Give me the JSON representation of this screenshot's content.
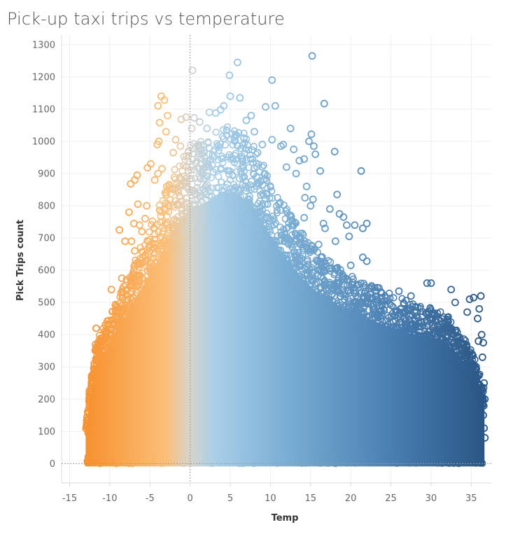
{
  "chart_data": {
    "type": "scatter",
    "title": "Pick-up taxi trips vs temperature",
    "xlabel": "Temp",
    "ylabel": "Pick Trips count",
    "xlim": [
      -16,
      37.5
    ],
    "ylim": [
      -60,
      1330
    ],
    "x_ticks": [
      -15,
      -10,
      -5,
      0,
      5,
      10,
      15,
      20,
      25,
      30,
      35
    ],
    "y_ticks": [
      0,
      100,
      200,
      300,
      400,
      500,
      600,
      700,
      800,
      900,
      1000,
      1100,
      1200,
      1300
    ],
    "grid": true,
    "marker": "hollow-circle",
    "color_scale": {
      "field": "Temp",
      "stops": [
        {
          "value": -13,
          "color": "#f7912f"
        },
        {
          "value": -3,
          "color": "#fbbf79"
        },
        {
          "value": 0,
          "color": "#d6d4cc"
        },
        {
          "value": 3,
          "color": "#a9cfe8"
        },
        {
          "value": 12,
          "color": "#7aaed4"
        },
        {
          "value": 25,
          "color": "#4a7fb2"
        },
        {
          "value": 36.5,
          "color": "#2a5786"
        }
      ]
    },
    "envelope": [
      [
        -13,
        120
      ],
      [
        -12,
        330
      ],
      [
        -10,
        420
      ],
      [
        -8,
        520
      ],
      [
        -6,
        620
      ],
      [
        -4,
        720
      ],
      [
        -2,
        830
      ],
      [
        0,
        900
      ],
      [
        2,
        920
      ],
      [
        4,
        960
      ],
      [
        6,
        950
      ],
      [
        8,
        900
      ],
      [
        10,
        800
      ],
      [
        12,
        720
      ],
      [
        14,
        650
      ],
      [
        16,
        600
      ],
      [
        18,
        560
      ],
      [
        20,
        530
      ],
      [
        22,
        510
      ],
      [
        24,
        490
      ],
      [
        26,
        470
      ],
      [
        28,
        450
      ],
      [
        30,
        440
      ],
      [
        32,
        420
      ],
      [
        34,
        360
      ],
      [
        35.5,
        300
      ],
      [
        36.5,
        220
      ]
    ],
    "outliers": [
      {
        "x": 0.3,
        "y": 1220
      },
      {
        "x": 4.9,
        "y": 1205
      },
      {
        "x": 5.9,
        "y": 1245
      },
      {
        "x": 15.2,
        "y": 1265
      },
      {
        "x": 10.2,
        "y": 1190
      },
      {
        "x": 16.7,
        "y": 1117
      },
      {
        "x": 10.6,
        "y": 1110
      },
      {
        "x": 9.4,
        "y": 1107
      },
      {
        "x": 5.0,
        "y": 1140
      },
      {
        "x": 6.2,
        "y": 1135
      },
      {
        "x": 4.2,
        "y": 1110
      },
      {
        "x": 7.6,
        "y": 1080
      },
      {
        "x": -3.6,
        "y": 1140
      },
      {
        "x": -3.2,
        "y": 1128
      },
      {
        "x": -4.0,
        "y": 1110
      },
      {
        "x": -2.8,
        "y": 1080
      },
      {
        "x": -3.8,
        "y": 1058
      },
      {
        "x": -3.0,
        "y": 1030
      },
      {
        "x": -3.9,
        "y": 1000
      },
      {
        "x": -4.1,
        "y": 990
      },
      {
        "x": 12.5,
        "y": 1040
      },
      {
        "x": 15.1,
        "y": 1022
      },
      {
        "x": 14.8,
        "y": 1000
      },
      {
        "x": 15.4,
        "y": 985
      },
      {
        "x": 16.2,
        "y": 908
      },
      {
        "x": 18.0,
        "y": 968
      },
      {
        "x": 21.3,
        "y": 908
      },
      {
        "x": 15.6,
        "y": 960
      },
      {
        "x": 14.2,
        "y": 945
      },
      {
        "x": 18.3,
        "y": 835
      },
      {
        "x": 17.4,
        "y": 790
      },
      {
        "x": 18.6,
        "y": 775
      },
      {
        "x": 19.1,
        "y": 765
      },
      {
        "x": 19.5,
        "y": 740
      },
      {
        "x": 20.5,
        "y": 740
      },
      {
        "x": 22.0,
        "y": 745
      },
      {
        "x": 21.5,
        "y": 730
      },
      {
        "x": 16.8,
        "y": 730
      },
      {
        "x": 18.1,
        "y": 690
      },
      {
        "x": 19.8,
        "y": 705
      },
      {
        "x": 21.5,
        "y": 640
      },
      {
        "x": 22.0,
        "y": 628
      },
      {
        "x": 15.0,
        "y": 665
      },
      {
        "x": 13.6,
        "y": 705
      },
      {
        "x": 16.0,
        "y": 680
      },
      {
        "x": 20.0,
        "y": 615
      },
      {
        "x": 23.5,
        "y": 545
      },
      {
        "x": 26.0,
        "y": 535
      },
      {
        "x": 27.5,
        "y": 520
      },
      {
        "x": 29.5,
        "y": 560
      },
      {
        "x": 30.0,
        "y": 560
      },
      {
        "x": 32.5,
        "y": 540
      },
      {
        "x": 33.0,
        "y": 500
      },
      {
        "x": 34.8,
        "y": 510
      },
      {
        "x": 35.3,
        "y": 515
      },
      {
        "x": 36.2,
        "y": 520
      },
      {
        "x": 36.0,
        "y": 480
      },
      {
        "x": 34.5,
        "y": 470
      },
      {
        "x": 35.8,
        "y": 450
      },
      {
        "x": 36.3,
        "y": 400
      },
      {
        "x": 36.5,
        "y": 375
      },
      {
        "x": 35.9,
        "y": 380
      },
      {
        "x": 36.4,
        "y": 330
      },
      {
        "x": 36.6,
        "y": 250
      },
      {
        "x": 36.7,
        "y": 200
      },
      {
        "x": 36.5,
        "y": 150
      },
      {
        "x": 36.6,
        "y": 110
      },
      {
        "x": 36.7,
        "y": 80
      },
      {
        "x": -11.7,
        "y": 420
      },
      {
        "x": -11.3,
        "y": 375
      },
      {
        "x": -12.0,
        "y": 295
      },
      {
        "x": -11.6,
        "y": 255
      },
      {
        "x": -12.5,
        "y": 180
      },
      {
        "x": -12.2,
        "y": 200
      },
      {
        "x": -12.6,
        "y": 140
      },
      {
        "x": -12.7,
        "y": 95
      },
      {
        "x": -10.1,
        "y": 355
      },
      {
        "x": -9.8,
        "y": 540
      },
      {
        "x": -8.5,
        "y": 575
      },
      {
        "x": -8.6,
        "y": 530
      },
      {
        "x": -8.8,
        "y": 725
      },
      {
        "x": -8.1,
        "y": 690
      },
      {
        "x": -7.3,
        "y": 690
      },
      {
        "x": -7.0,
        "y": 745
      },
      {
        "x": -6.9,
        "y": 660
      },
      {
        "x": -7.6,
        "y": 780
      },
      {
        "x": -6.5,
        "y": 805
      },
      {
        "x": -6.3,
        "y": 740
      },
      {
        "x": -6.0,
        "y": 720
      },
      {
        "x": -7.4,
        "y": 868
      },
      {
        "x": -6.9,
        "y": 880
      },
      {
        "x": -6.6,
        "y": 895
      },
      {
        "x": -5.3,
        "y": 918
      },
      {
        "x": -4.9,
        "y": 930
      },
      {
        "x": -4.4,
        "y": 880
      },
      {
        "x": -5.4,
        "y": 800
      },
      {
        "x": -5.6,
        "y": 760
      },
      {
        "x": -4.0,
        "y": 900
      },
      {
        "x": -3.5,
        "y": 915
      },
      {
        "x": -2.9,
        "y": 860
      },
      {
        "x": -2.1,
        "y": 965
      },
      {
        "x": -1.1,
        "y": 1068
      },
      {
        "x": -0.5,
        "y": 1075
      },
      {
        "x": 0.5,
        "y": 1073
      },
      {
        "x": 1.2,
        "y": 1060
      },
      {
        "x": 2.4,
        "y": 1090
      },
      {
        "x": 3.2,
        "y": 1088
      },
      {
        "x": 3.8,
        "y": 1098
      },
      {
        "x": 2.1,
        "y": 1040
      },
      {
        "x": 1.0,
        "y": 985
      },
      {
        "x": 0.2,
        "y": 1040
      },
      {
        "x": -1.2,
        "y": 985
      },
      {
        "x": -1.8,
        "y": 1005
      },
      {
        "x": 7.0,
        "y": 1065
      },
      {
        "x": 6.7,
        "y": 1010
      },
      {
        "x": 8.0,
        "y": 1030
      },
      {
        "x": 9.0,
        "y": 990
      },
      {
        "x": 8.4,
        "y": 965
      },
      {
        "x": 10.2,
        "y": 1005
      },
      {
        "x": 11.3,
        "y": 985
      },
      {
        "x": 11.6,
        "y": 990
      },
      {
        "x": 12.9,
        "y": 975
      },
      {
        "x": 13.6,
        "y": 940
      },
      {
        "x": 12.0,
        "y": 920
      },
      {
        "x": 13.2,
        "y": 900
      },
      {
        "x": 14.5,
        "y": 860
      },
      {
        "x": 14.3,
        "y": 825
      },
      {
        "x": 15.3,
        "y": 820
      },
      {
        "x": 15.0,
        "y": 800
      },
      {
        "x": 14.2,
        "y": 763
      },
      {
        "x": 16.6,
        "y": 745
      }
    ]
  }
}
